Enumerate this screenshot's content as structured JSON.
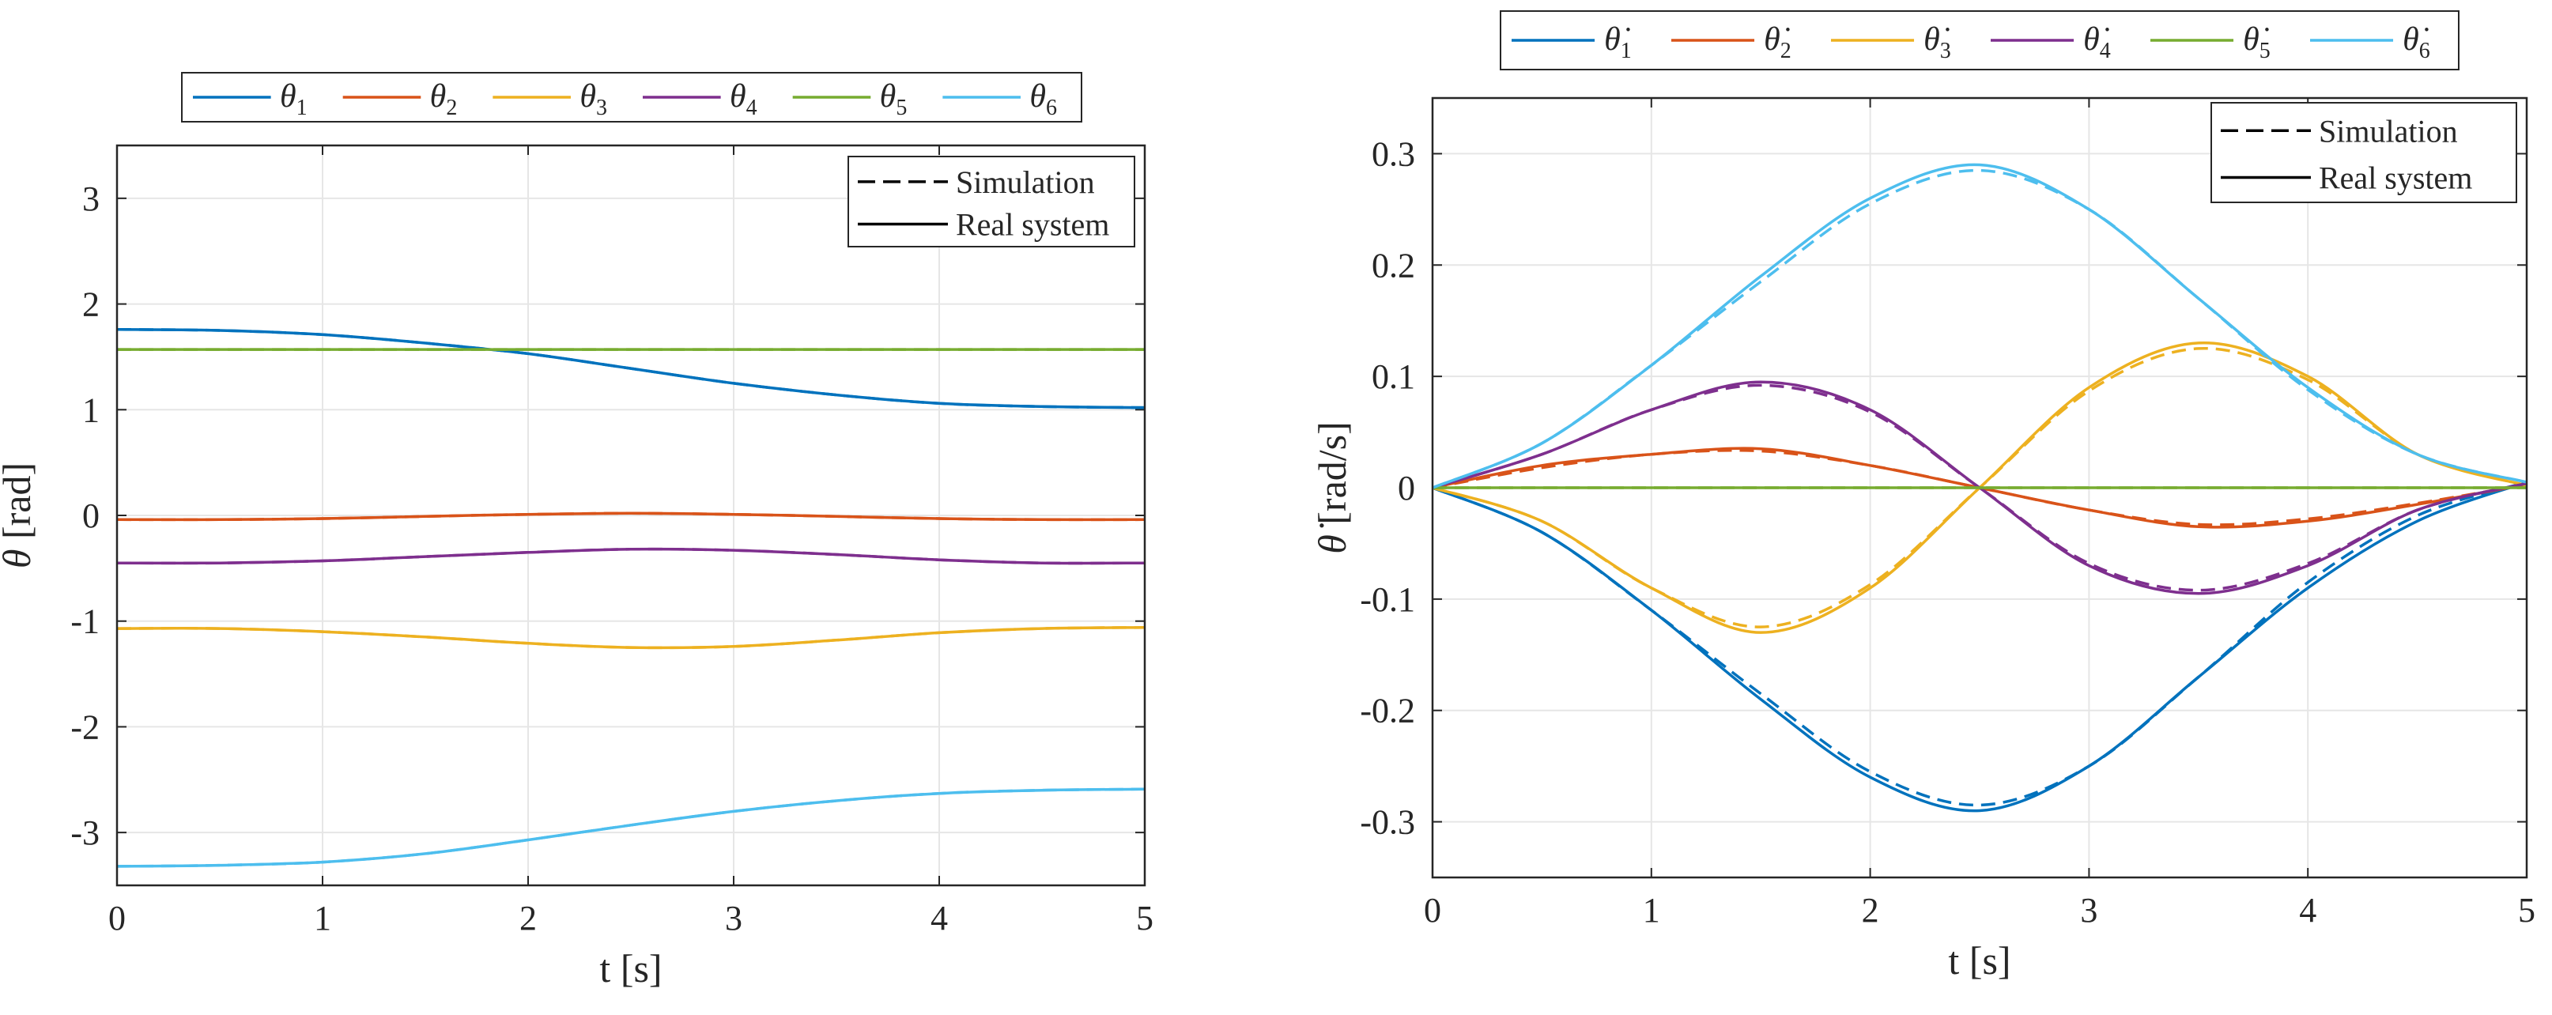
{
  "chart_data": [
    {
      "type": "line",
      "title": "",
      "xlabel": "t [s]",
      "ylabel_symbol": "θ",
      "ylabel_unit": "[rad]",
      "xlim": [
        0,
        5
      ],
      "ylim": [
        -3.5,
        3.5
      ],
      "xticks": [
        "0",
        "1",
        "2",
        "3",
        "4",
        "5"
      ],
      "yticks": [
        "3",
        "2",
        "1",
        "0",
        "-1",
        "-2",
        "-3"
      ],
      "grid": true,
      "legend_top": [
        {
          "symbol": "θ",
          "sub": "1",
          "color": "#0072BD"
        },
        {
          "symbol": "θ",
          "sub": "2",
          "color": "#D95319"
        },
        {
          "symbol": "θ",
          "sub": "3",
          "color": "#EDB120"
        },
        {
          "symbol": "θ",
          "sub": "4",
          "color": "#7E2F8E"
        },
        {
          "symbol": "θ",
          "sub": "5",
          "color": "#77AC30"
        },
        {
          "symbol": "θ",
          "sub": "6",
          "color": "#4DBEEE"
        }
      ],
      "legend_style": {
        "simulation": "Simulation",
        "real": "Real system",
        "placement": "top-right"
      },
      "x": [
        0,
        0.5,
        1,
        1.5,
        2,
        2.5,
        3,
        3.5,
        4,
        4.5,
        5
      ],
      "series": [
        {
          "name": "θ1",
          "color": "#0072BD",
          "values": [
            1.76,
            1.75,
            1.71,
            1.63,
            1.53,
            1.39,
            1.25,
            1.14,
            1.06,
            1.03,
            1.02
          ]
        },
        {
          "name": "θ2",
          "color": "#D95319",
          "values": [
            -0.04,
            -0.04,
            -0.03,
            -0.01,
            0.01,
            0.02,
            0.01,
            -0.01,
            -0.03,
            -0.04,
            -0.04
          ]
        },
        {
          "name": "θ3",
          "color": "#EDB120",
          "values": [
            -1.07,
            -1.07,
            -1.1,
            -1.15,
            -1.21,
            -1.25,
            -1.24,
            -1.18,
            -1.11,
            -1.07,
            -1.06
          ]
        },
        {
          "name": "θ4",
          "color": "#7E2F8E",
          "values": [
            -0.45,
            -0.45,
            -0.43,
            -0.39,
            -0.35,
            -0.32,
            -0.33,
            -0.37,
            -0.42,
            -0.45,
            -0.45
          ]
        },
        {
          "name": "θ5",
          "color": "#77AC30",
          "values": [
            1.57,
            1.57,
            1.57,
            1.57,
            1.57,
            1.57,
            1.57,
            1.57,
            1.57,
            1.57,
            1.57
          ]
        },
        {
          "name": "θ6",
          "color": "#4DBEEE",
          "values": [
            -3.32,
            -3.31,
            -3.28,
            -3.2,
            -3.07,
            -2.93,
            -2.8,
            -2.7,
            -2.63,
            -2.6,
            -2.59
          ]
        }
      ]
    },
    {
      "type": "line",
      "title": "",
      "xlabel": "t [s]",
      "ylabel_symbol": "θ̇",
      "ylabel_unit": "[rad/s]",
      "xlim": [
        0,
        5
      ],
      "ylim": [
        -0.35,
        0.35
      ],
      "xticks": [
        "0",
        "1",
        "2",
        "3",
        "4",
        "5"
      ],
      "yticks": [
        "0.3",
        "0.2",
        "0.1",
        "0",
        "-0.1",
        "-0.2",
        "-0.3"
      ],
      "grid": true,
      "legend_top": [
        {
          "symbol": "θ̇",
          "sub": "1",
          "color": "#0072BD"
        },
        {
          "symbol": "θ̇",
          "sub": "2",
          "color": "#D95319"
        },
        {
          "symbol": "θ̇",
          "sub": "3",
          "color": "#EDB120"
        },
        {
          "symbol": "θ̇",
          "sub": "4",
          "color": "#7E2F8E"
        },
        {
          "symbol": "θ̇",
          "sub": "5",
          "color": "#77AC30"
        },
        {
          "symbol": "θ̇",
          "sub": "6",
          "color": "#4DBEEE"
        }
      ],
      "legend_style": {
        "simulation": "Simulation",
        "real": "Real system",
        "placement": "top-right"
      },
      "x": [
        0,
        0.5,
        1,
        1.5,
        2,
        2.5,
        3,
        3.5,
        4,
        4.5,
        5
      ],
      "series": [
        {
          "name": "θ̇1",
          "color": "#0072BD",
          "values": [
            0,
            -0.04,
            -0.11,
            -0.19,
            -0.26,
            -0.29,
            -0.25,
            -0.17,
            -0.09,
            -0.03,
            0.005
          ]
        },
        {
          "name": "θ̇2",
          "color": "#D95319",
          "values": [
            0,
            0.02,
            0.03,
            0.035,
            0.02,
            0,
            -0.02,
            -0.035,
            -0.03,
            -0.015,
            0.003
          ]
        },
        {
          "name": "θ̇3",
          "color": "#EDB120",
          "values": [
            0,
            -0.03,
            -0.09,
            -0.13,
            -0.09,
            0,
            0.09,
            0.13,
            0.1,
            0.03,
            0.002
          ]
        },
        {
          "name": "θ̇4",
          "color": "#7E2F8E",
          "values": [
            0,
            0.03,
            0.07,
            0.095,
            0.07,
            0,
            -0.07,
            -0.095,
            -0.07,
            -0.02,
            0.004
          ]
        },
        {
          "name": "θ̇5",
          "color": "#77AC30",
          "values": [
            0,
            0,
            0,
            0,
            0,
            0,
            0,
            0,
            0,
            0,
            0
          ]
        },
        {
          "name": "θ̇6",
          "color": "#4DBEEE",
          "values": [
            0,
            0.04,
            0.11,
            0.19,
            0.26,
            0.29,
            0.25,
            0.17,
            0.09,
            0.03,
            0.005
          ]
        }
      ],
      "simulation_values": {
        "θ̇1": [
          0,
          -0.04,
          -0.11,
          -0.185,
          -0.255,
          -0.285,
          -0.25,
          -0.17,
          -0.085,
          -0.025,
          0.005
        ],
        "θ̇2": [
          0,
          0.018,
          0.03,
          0.033,
          0.02,
          0,
          -0.02,
          -0.033,
          -0.028,
          -0.014,
          0.003
        ],
        "θ̇3": [
          0,
          -0.03,
          -0.09,
          -0.125,
          -0.087,
          0,
          0.087,
          0.125,
          0.097,
          0.03,
          0.002
        ],
        "θ̇4": [
          0,
          0.03,
          0.07,
          0.092,
          0.068,
          0,
          -0.068,
          -0.092,
          -0.068,
          -0.02,
          0.004
        ],
        "θ̇5": [
          0,
          0,
          0,
          0,
          0,
          0,
          0,
          0,
          0,
          0,
          0
        ],
        "θ̇6": [
          0,
          0.04,
          0.11,
          0.185,
          0.255,
          0.285,
          0.25,
          0.17,
          0.088,
          0.03,
          0.005
        ]
      }
    }
  ]
}
